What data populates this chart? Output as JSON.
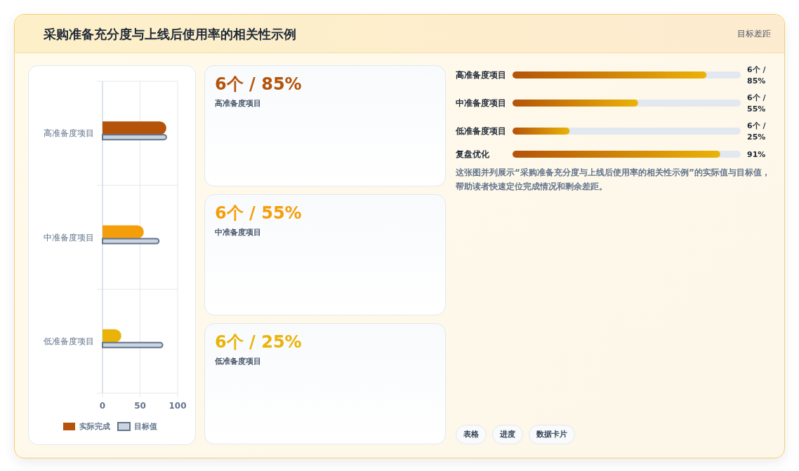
{
  "chart_data": [
    {
      "type": "other",
      "title": "采购准备充分度与上线后使用率的相关性示例",
      "subtitle": "目标差距"
    },
    {
      "type": "bar",
      "orientation": "horizontal",
      "categories": [
        "高准备度项目",
        "中准备度项目",
        "低准备度项目"
      ],
      "series": [
        {
          "name": "实际完成",
          "color": "#b45309",
          "colors": [
            "#b45309",
            "#f59e0b",
            "#eab308"
          ],
          "values": [
            85,
            55,
            25
          ]
        },
        {
          "name": "目标值",
          "color": "#cbd5e1",
          "values": [
            85,
            75,
            80
          ]
        }
      ],
      "xlim": [
        0,
        100
      ],
      "xticks": [
        0,
        50,
        100
      ],
      "grid": true,
      "legend": "bottom"
    },
    {
      "type": "other",
      "annotations": [
        "6个 / 85%",
        "高准备度项目",
        "6个 / 55%",
        "中准备度项目",
        "6个 / 25%",
        "低准备度项目"
      ],
      "colors": [
        "#b45309",
        "#f59e0b",
        "#eab308"
      ]
    },
    {
      "type": "bar",
      "orientation": "horizontal",
      "xlim": [
        0,
        100
      ],
      "categories": [
        "高准备度项目",
        "中准备度项目",
        "低准备度项目",
        "复盘优化"
      ],
      "values": [
        85,
        55,
        25,
        91
      ],
      "value_labels": [
        "6个 / 85%",
        "6个 / 55%",
        "6个 / 25%",
        "91%"
      ],
      "color": "#b45309",
      "annotations": [
        "这张图并列展示“采购准备充分度与上线后使用率的相关性示例”的实际值与目标值，帮助读者快速定位完成情况和剩余差距。",
        "表格",
        "进度",
        "数据卡片"
      ]
    }
  ]
}
